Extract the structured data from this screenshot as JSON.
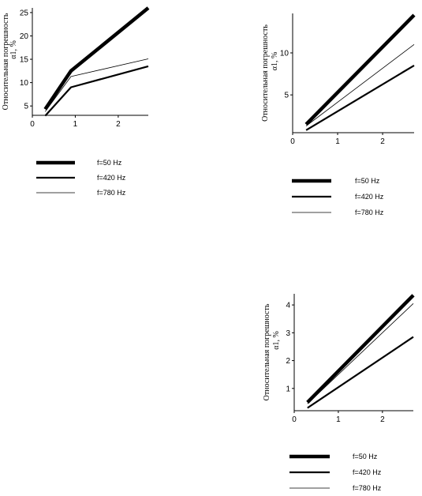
{
  "charts": [
    {
      "chart_data": {
        "type": "line",
        "ylabel_line1": "Относительная погрешность",
        "ylabel_line2": "α1, %",
        "xlim": [
          0,
          2.7
        ],
        "ylim": [
          3,
          26
        ],
        "xticks": [
          0,
          1,
          2
        ],
        "yticks": [
          5,
          10,
          15,
          20,
          25
        ],
        "series": [
          {
            "name": "f=50 Hz",
            "weight": "heavy",
            "x": [
              0.3,
              0.9,
              2.7
            ],
            "y": [
              4.3,
              12.5,
              26
            ]
          },
          {
            "name": "f=420 Hz",
            "weight": "medium",
            "x": [
              0.3,
              0.9,
              2.7
            ],
            "y": [
              2.9,
              9,
              13.5
            ]
          },
          {
            "name": "f=780 Hz",
            "weight": "thin",
            "x": [
              0.3,
              0.9,
              2.7
            ],
            "y": [
              3.8,
              11.3,
              15.1
            ]
          }
        ]
      }
    },
    {
      "chart_data": {
        "type": "line",
        "ylabel_line1": "Относительная погрешность",
        "ylabel_line2": "α1, %",
        "xlim": [
          0,
          2.7
        ],
        "ylim": [
          0.5,
          14.7
        ],
        "xticks": [
          0,
          1,
          2
        ],
        "yticks": [
          5,
          10
        ],
        "series": [
          {
            "name": "f=50 Hz",
            "weight": "heavy",
            "x": [
              0.3,
              2.7
            ],
            "y": [
              1.5,
              14.5
            ]
          },
          {
            "name": "f=420 Hz",
            "weight": "medium",
            "x": [
              0.3,
              2.7
            ],
            "y": [
              0.8,
              8.5
            ]
          },
          {
            "name": "f=780 Hz",
            "weight": "thin",
            "x": [
              0.3,
              2.7
            ],
            "y": [
              1.3,
              11
            ]
          }
        ]
      }
    },
    {
      "chart_data": {
        "type": "line",
        "ylabel_line1": "Относительная погрешность",
        "ylabel_line2": "α1, %",
        "xlim": [
          0,
          2.7
        ],
        "ylim": [
          0.2,
          4.4
        ],
        "xticks": [
          0,
          1,
          2
        ],
        "yticks": [
          1,
          2,
          3,
          4
        ],
        "series": [
          {
            "name": "f=50 Hz",
            "weight": "heavy",
            "x": [
              0.3,
              2.7
            ],
            "y": [
              0.5,
              4.35
            ]
          },
          {
            "name": "f=420 Hz",
            "weight": "medium",
            "x": [
              0.3,
              2.7
            ],
            "y": [
              0.3,
              2.85
            ]
          },
          {
            "name": "f=780 Hz",
            "weight": "thin",
            "x": [
              0.3,
              2.7
            ],
            "y": [
              0.45,
              4.05
            ]
          }
        ]
      }
    }
  ]
}
